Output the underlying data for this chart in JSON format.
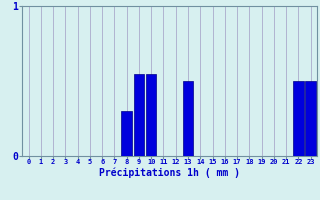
{
  "xlabel": "Précipitations 1h ( mm )",
  "hours": [
    0,
    1,
    2,
    3,
    4,
    5,
    6,
    7,
    8,
    9,
    10,
    11,
    12,
    13,
    14,
    15,
    16,
    17,
    18,
    19,
    20,
    21,
    22,
    23
  ],
  "values": [
    0,
    0,
    0,
    0,
    0,
    0,
    0,
    0,
    0.3,
    0.55,
    0.55,
    0,
    0,
    0.5,
    0,
    0,
    0,
    0,
    0,
    0,
    0,
    0,
    0.5,
    0.5
  ],
  "bar_color": "#0000dd",
  "bar_edge_color": "#000088",
  "background_color": "#d7f0f0",
  "grid_color": "#aec8cc",
  "axis_color": "#7090a0",
  "text_color": "#0000cc",
  "ylim": [
    0,
    1.0
  ],
  "yticks": [
    0,
    1
  ],
  "xlim": [
    -0.5,
    23.5
  ],
  "grid_line_color_h": "#cc3333",
  "grid_line_color_v": "#aaaacc"
}
